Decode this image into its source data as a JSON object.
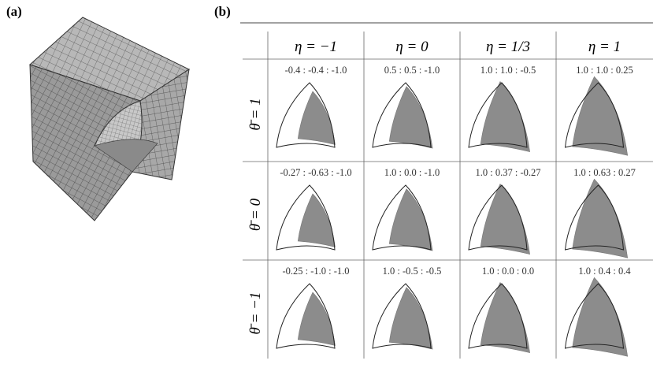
{
  "panel_a": {
    "label": "(a)"
  },
  "panel_b": {
    "label": "(b)",
    "table": {
      "columns": [
        "η = −1",
        "η = 0",
        "η = 1/3",
        "η = 1"
      ],
      "rows": [
        {
          "header": "θ̄ = 1",
          "cells": [
            "-0.4 : -0.4 : -1.0",
            "0.5 : 0.5 : -1.0",
            "1.0 : 1.0 : -0.5",
            "1.0 : 1.0 : 0.25"
          ]
        },
        {
          "header": "θ̄ = 0",
          "cells": [
            "-0.27 : -0.63 : -1.0",
            "1.0 : 0.0 : -1.0",
            "1.0 : 0.37 : -0.27",
            "1.0 : 0.63 : 0.27"
          ]
        },
        {
          "header": "θ̄ = −1",
          "cells": [
            "-0.25 : -1.0 : -1.0",
            "1.0 : -0.5 : -0.5",
            "1.0 : 0.0 : 0.0",
            "1.0 : 0.4 : 0.4"
          ]
        }
      ]
    }
  }
}
